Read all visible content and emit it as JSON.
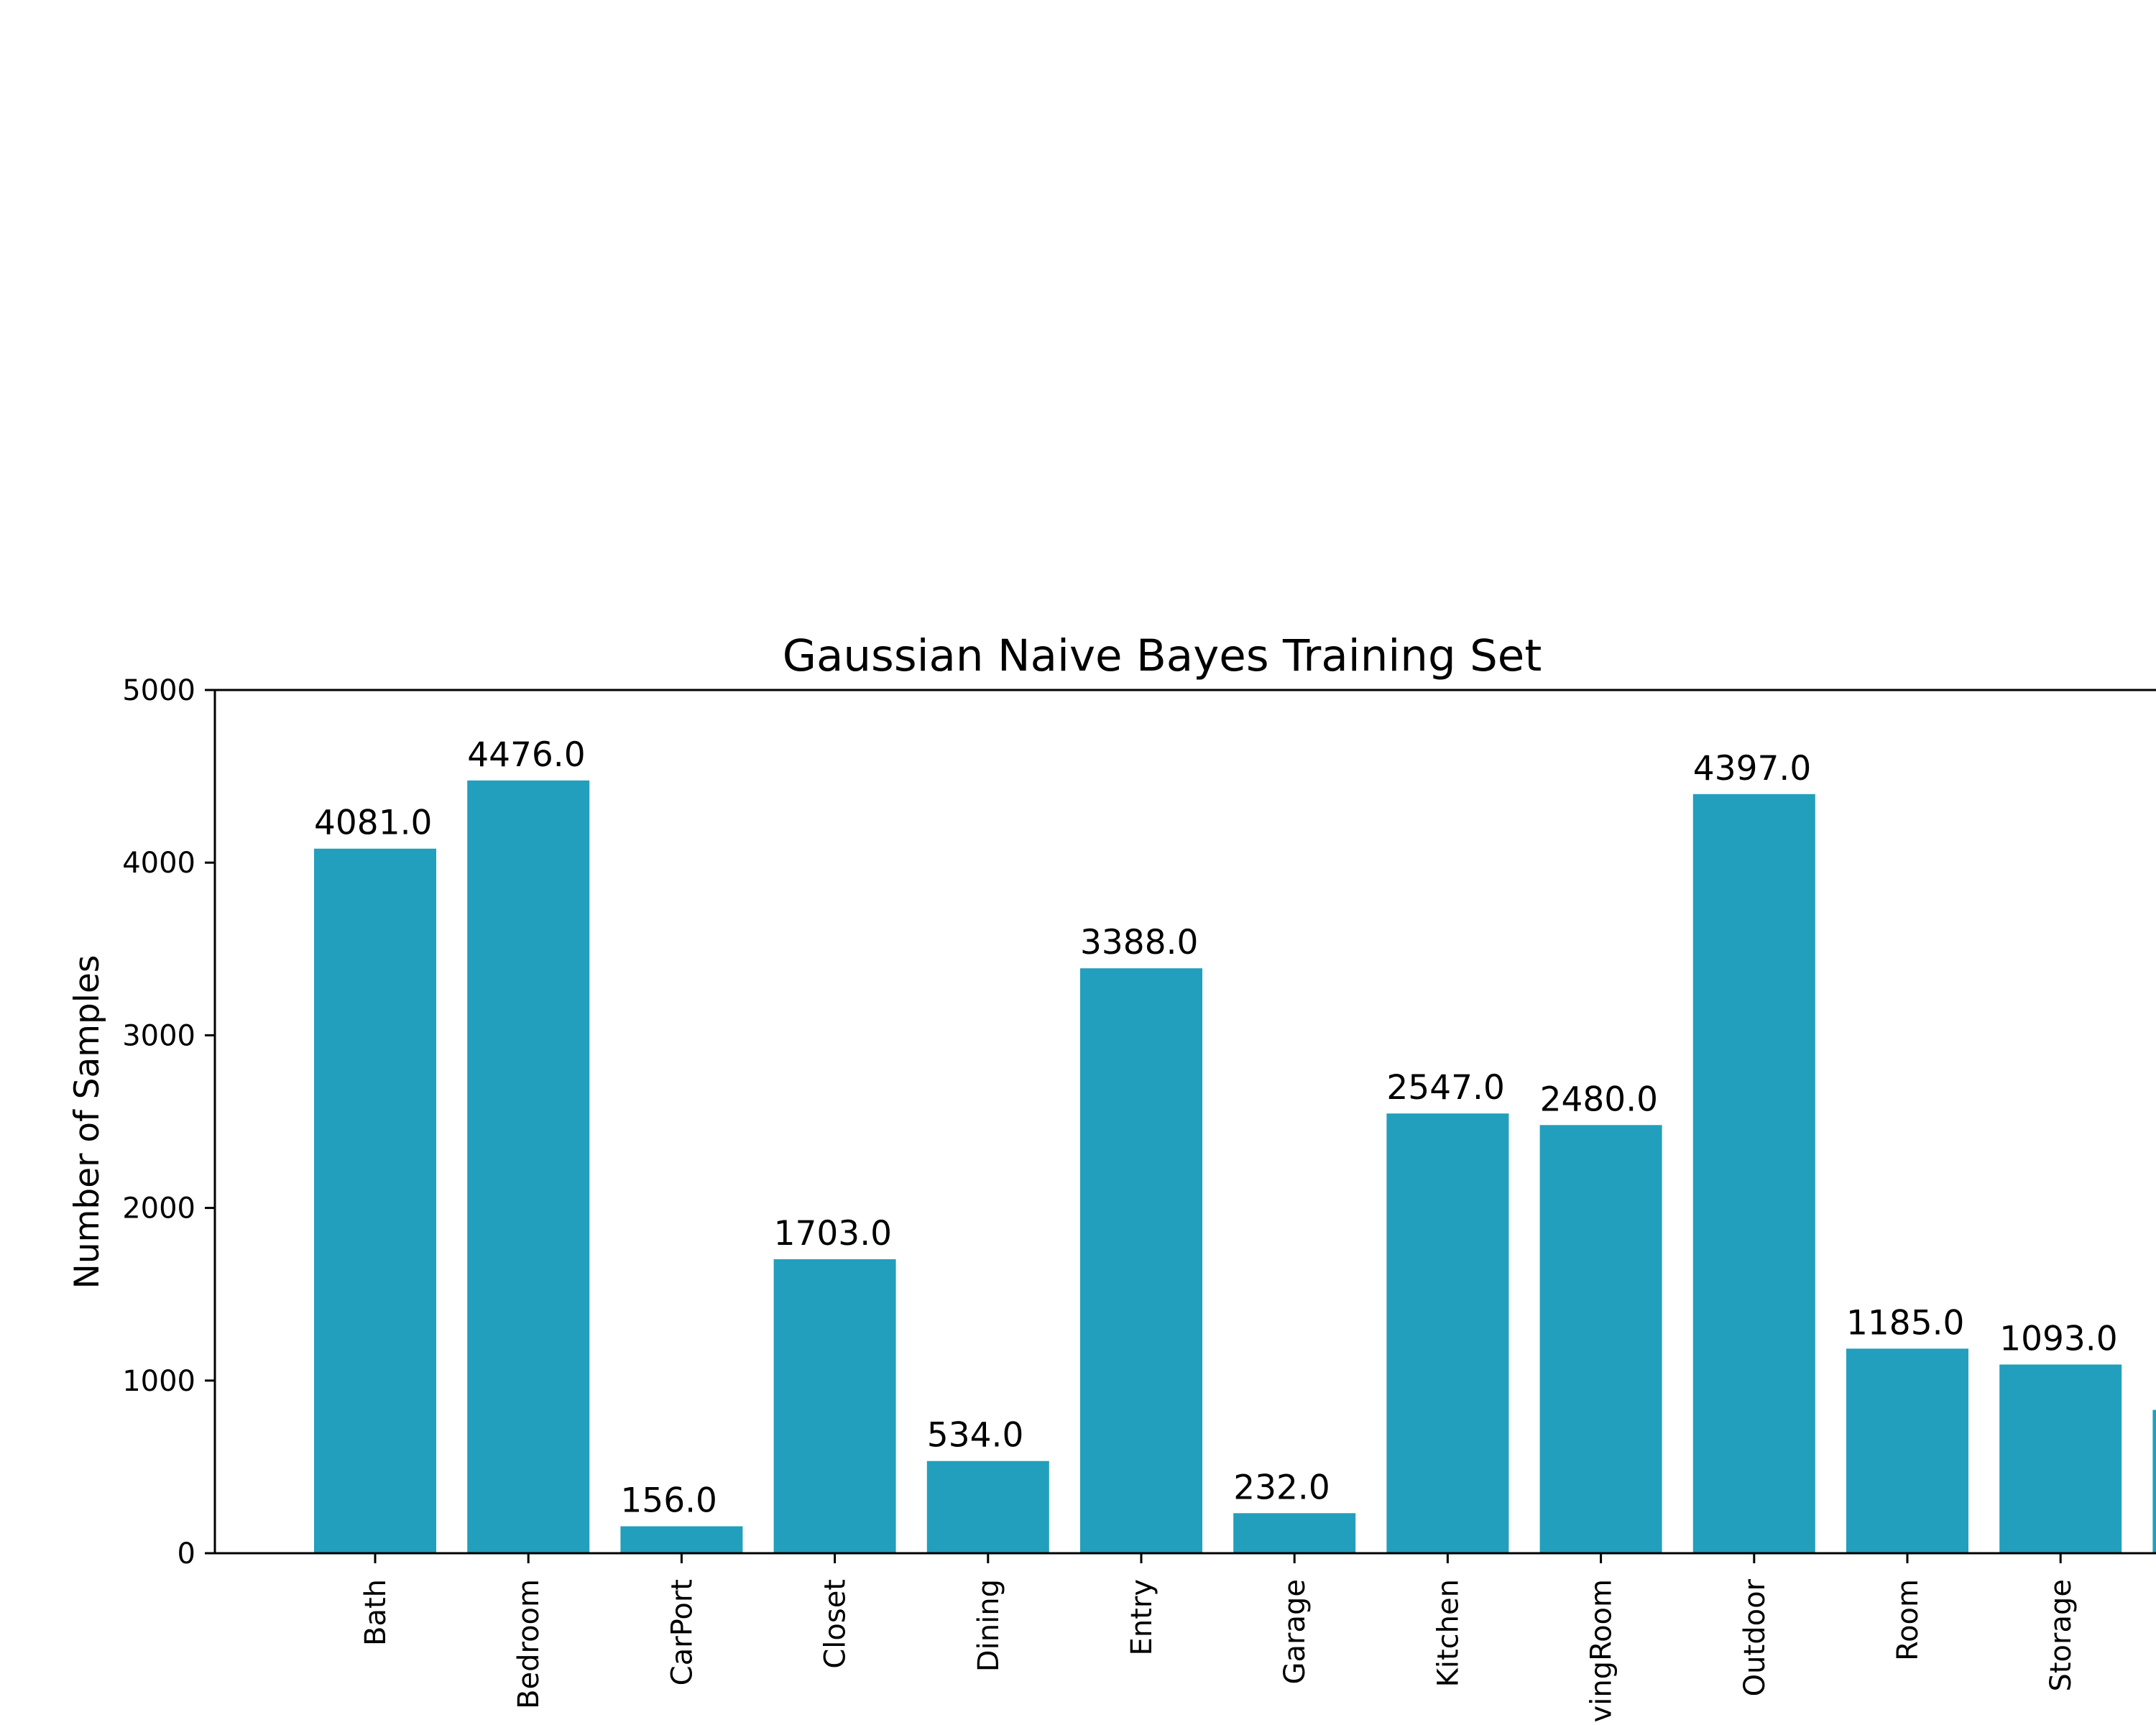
{
  "chart_data": {
    "type": "bar",
    "title": "Gaussian Naive Bayes Training Set",
    "xlabel": "",
    "ylabel": "Number of Samples",
    "ylim": [
      0,
      5000
    ],
    "yticks": [
      0,
      1000,
      2000,
      3000,
      4000,
      5000
    ],
    "grid": false,
    "categories": [
      "Bath",
      "Bedroom",
      "CarPort",
      "Closet",
      "Dining",
      "Entry",
      "Garage",
      "Kitchen",
      "LivingRoom",
      "Outdoor",
      "Room",
      "Storage",
      ""
    ],
    "values": [
      4081,
      4476,
      156,
      1703,
      534,
      3388,
      232,
      2547,
      2480,
      4397,
      1185,
      1093,
      830
    ],
    "value_labels": [
      "4081.0",
      "4476.0",
      "156.0",
      "1703.0",
      "534.0",
      "3388.0",
      "232.0",
      "2547.0",
      "2480.0",
      "4397.0",
      "1185.0",
      "1093.0",
      ""
    ],
    "bar_color": "#229fbc"
  }
}
